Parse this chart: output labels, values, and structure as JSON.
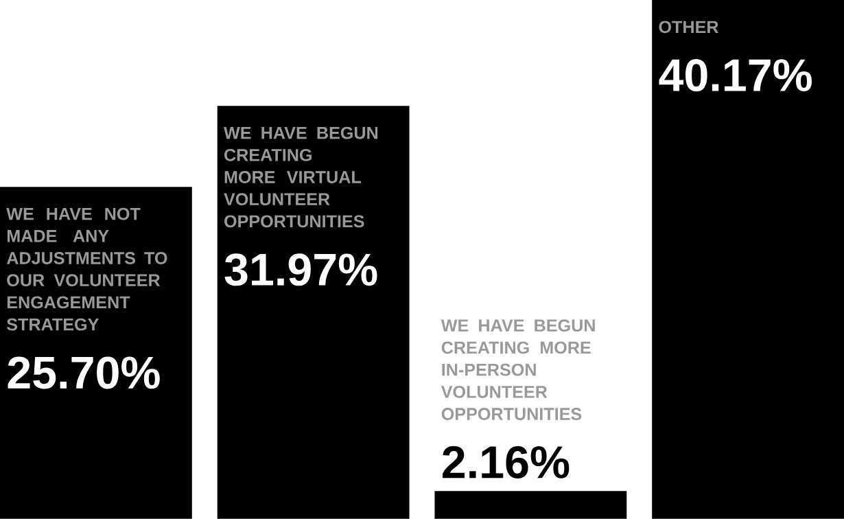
{
  "chart_data": {
    "type": "bar",
    "categories": [
      "WE HAVE NOT MADE ANY ADJUSTMENTS TO OUR VOLUNTEER ENGAGEMENT STRATEGY",
      "WE HAVE BEGUN CREATING MORE VIRTUAL VOLUNTEER OPPORTUNITIES",
      "WE HAVE BEGUN CREATING MORE IN-PERSON VOLUNTEER OPPORTUNITIES",
      "OTHER"
    ],
    "values": [
      25.7,
      31.97,
      2.16,
      40.17
    ],
    "value_labels": [
      "25.70%",
      "31.97%",
      "2.16%",
      "40.17%"
    ],
    "color": "#000000"
  }
}
